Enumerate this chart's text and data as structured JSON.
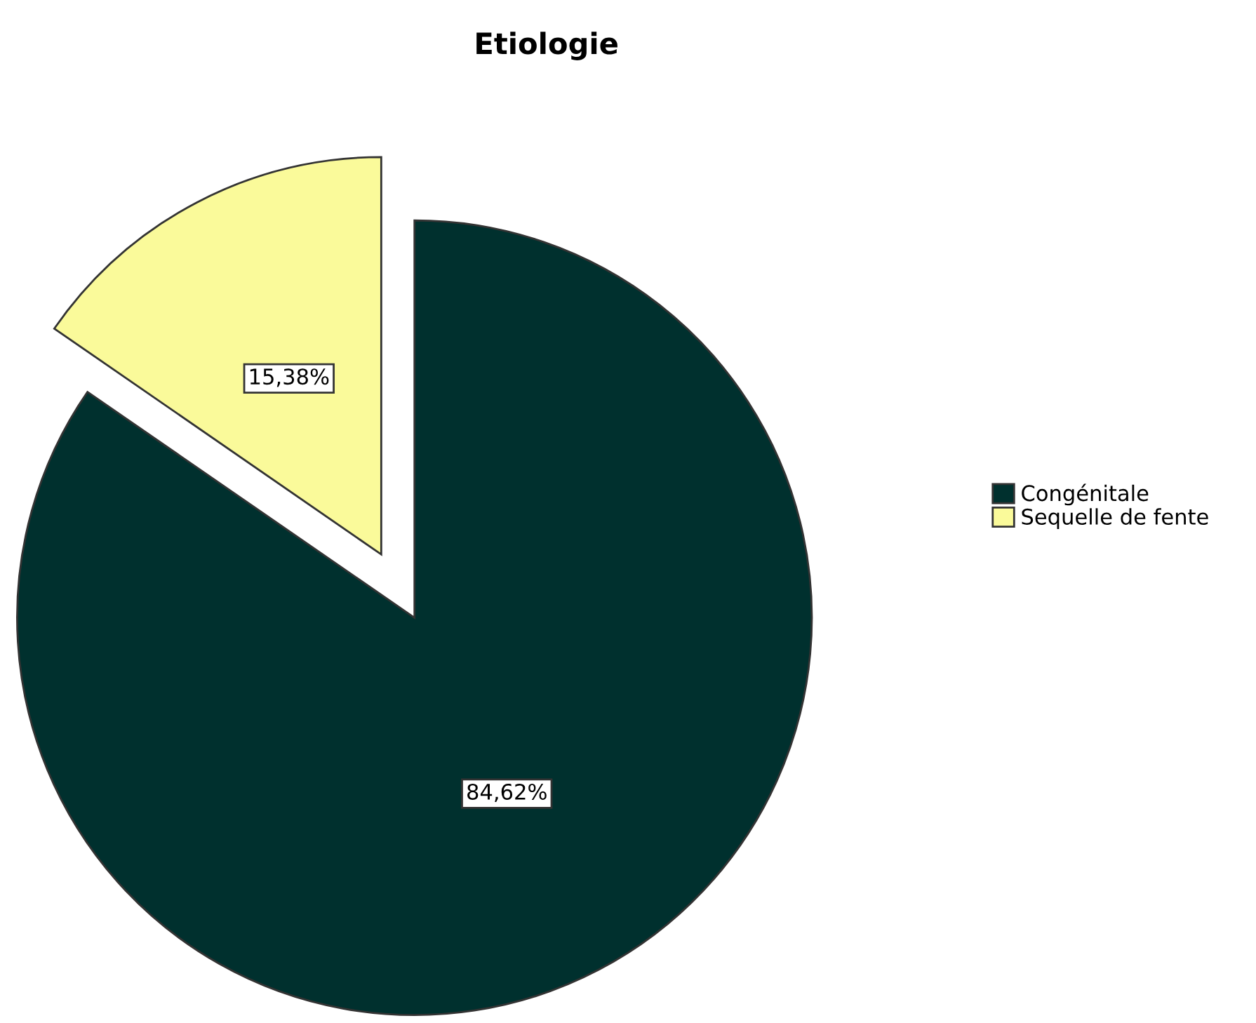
{
  "chart_data": {
    "type": "pie",
    "title": "Etiologie",
    "categories": [
      "Congénitale",
      "Sequelle de fente"
    ],
    "values": [
      84.62,
      15.38
    ],
    "value_labels": [
      "84,62%",
      "15,38%"
    ],
    "colors": [
      "#00302e",
      "#fafa9a"
    ],
    "legend": "right"
  }
}
